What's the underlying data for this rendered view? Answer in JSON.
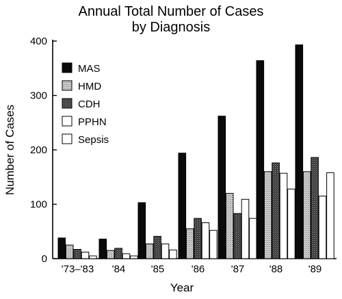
{
  "chart_data": {
    "type": "bar",
    "title": "Annual Total Number of Cases",
    "subtitle": "by Diagnosis",
    "xlabel": "Year",
    "ylabel": "Number of Cases",
    "ylim": [
      0,
      400
    ],
    "yticks": [
      0,
      100,
      200,
      300,
      400
    ],
    "grid": false,
    "legend_position": "top-left",
    "categories": [
      "'73–'83",
      "'84",
      "'85",
      "'86",
      "'87",
      "'88",
      "'89"
    ],
    "series": [
      {
        "name": "MAS",
        "pattern": "solid",
        "values": [
          38,
          36,
          103,
          194,
          262,
          364,
          393
        ]
      },
      {
        "name": "HMD",
        "pattern": "light-stipple",
        "values": [
          25,
          15,
          27,
          55,
          120,
          160,
          160
        ]
      },
      {
        "name": "CDH",
        "pattern": "dark-stipple",
        "values": [
          17,
          19,
          41,
          74,
          83,
          176,
          186
        ]
      },
      {
        "name": "PPHN",
        "pattern": "white",
        "values": [
          12,
          9,
          27,
          66,
          109,
          157,
          115
        ]
      },
      {
        "name": "Sepsis",
        "pattern": "white",
        "values": [
          5,
          5,
          16,
          52,
          74,
          128,
          158
        ]
      }
    ]
  }
}
